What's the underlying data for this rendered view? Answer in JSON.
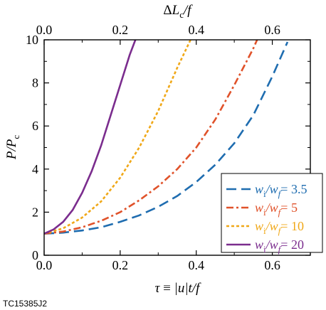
{
  "chart_data": {
    "type": "line",
    "title": "",
    "xlabel": "τ ≡ |u|t/f",
    "x2label": "ΔL_c/f",
    "ylabel": "P/P_c",
    "xlim": [
      0.0,
      0.7
    ],
    "ylim": [
      0,
      10
    ],
    "x2lim": [
      0.0,
      0.7
    ],
    "xticks": [
      "0.0",
      "0.2",
      "0.4",
      "0.6"
    ],
    "x2ticks": [
      "0.0",
      "0.2",
      "0.4",
      "0.6"
    ],
    "yticks": [
      "0",
      "2",
      "4",
      "6",
      "8",
      "10"
    ],
    "grid": false,
    "legend_position": "bottom-right",
    "series": [
      {
        "name": "w_i/w_f = 3.5",
        "label_lhs": "w",
        "label_lhs_sub": "i",
        "label_rhs": "w",
        "label_rhs_sub": "f",
        "label_value": "= 3.5",
        "color": "#1f6db0",
        "style": "long-dash",
        "x": [
          0.0,
          0.05,
          0.1,
          0.15,
          0.2,
          0.25,
          0.3,
          0.35,
          0.4,
          0.45,
          0.5,
          0.55,
          0.6,
          0.64
        ],
        "y": [
          1.0,
          1.05,
          1.15,
          1.3,
          1.55,
          1.85,
          2.25,
          2.75,
          3.4,
          4.2,
          5.2,
          6.5,
          8.3,
          9.9
        ]
      },
      {
        "name": "w_i/w_f = 5",
        "label_lhs": "w",
        "label_lhs_sub": "i",
        "label_rhs": "w",
        "label_rhs_sub": "f",
        "label_value": "= 5",
        "color": "#e0522a",
        "style": "dash-dot",
        "x": [
          0.0,
          0.05,
          0.1,
          0.15,
          0.2,
          0.25,
          0.3,
          0.35,
          0.4,
          0.45,
          0.5,
          0.55,
          0.56
        ],
        "y": [
          1.0,
          1.1,
          1.3,
          1.6,
          2.0,
          2.55,
          3.2,
          4.0,
          5.0,
          6.3,
          7.9,
          9.6,
          10.0
        ]
      },
      {
        "name": "w_i/w_f = 10",
        "label_lhs": "w",
        "label_lhs_sub": "i",
        "label_rhs": "w",
        "label_rhs_sub": "f",
        "label_value": "= 10",
        "color": "#f0a818",
        "style": "dotted",
        "x": [
          0.0,
          0.05,
          0.1,
          0.15,
          0.2,
          0.25,
          0.3,
          0.35,
          0.385
        ],
        "y": [
          1.0,
          1.25,
          1.75,
          2.5,
          3.6,
          5.0,
          6.7,
          8.7,
          10.0
        ]
      },
      {
        "name": "w_i/w_f = 20",
        "label_lhs": "w",
        "label_lhs_sub": "i",
        "label_rhs": "w",
        "label_rhs_sub": "f",
        "label_value": "= 20",
        "color": "#7b2d8e",
        "style": "solid",
        "x": [
          0.0,
          0.025,
          0.05,
          0.075,
          0.1,
          0.125,
          0.15,
          0.175,
          0.2,
          0.225,
          0.24
        ],
        "y": [
          1.0,
          1.2,
          1.55,
          2.1,
          2.9,
          3.9,
          5.1,
          6.5,
          7.9,
          9.3,
          10.0
        ]
      }
    ]
  },
  "footer": {
    "code": "TC15385J2"
  }
}
